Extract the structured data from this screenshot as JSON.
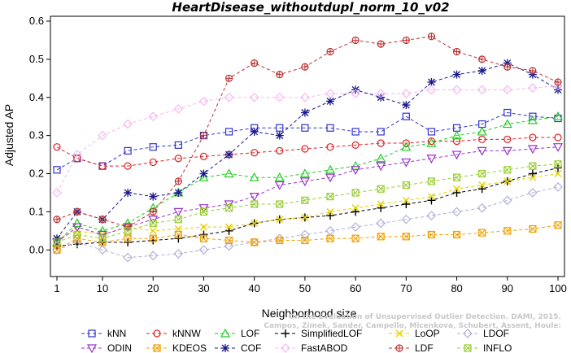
{
  "chart_data": {
    "type": "line",
    "title": "HeartDisease_withoutdupl_norm_10_v02",
    "xlabel": "Neighborhood size",
    "ylabel": "Adjusted AP",
    "xlim": [
      1,
      100
    ],
    "ylim": [
      -0.04,
      0.6
    ],
    "xticks": [
      "1",
      "10",
      "20",
      "30",
      "40",
      "50",
      "60",
      "70",
      "80",
      "90",
      "100"
    ],
    "yticks": [
      "0.0",
      "0.1",
      "0.2",
      "0.3",
      "0.4",
      "0.5",
      "0.6"
    ],
    "x": [
      1,
      5,
      10,
      15,
      20,
      25,
      30,
      35,
      40,
      45,
      50,
      55,
      60,
      65,
      70,
      75,
      80,
      85,
      90,
      95,
      100
    ],
    "series": [
      {
        "name": "kNN",
        "color": "#3333cc",
        "marker": "square",
        "dash": "4,3",
        "values": [
          0.21,
          0.24,
          0.22,
          0.26,
          0.27,
          0.275,
          0.3,
          0.31,
          0.32,
          0.32,
          0.32,
          0.32,
          0.31,
          0.31,
          0.35,
          0.31,
          0.32,
          0.33,
          0.36,
          0.35,
          0.345
        ]
      },
      {
        "name": "kNNW",
        "color": "#dd2222",
        "marker": "circle",
        "dash": "4,3",
        "values": [
          0.27,
          0.24,
          0.22,
          0.22,
          0.23,
          0.24,
          0.245,
          0.25,
          0.255,
          0.26,
          0.265,
          0.27,
          0.275,
          0.28,
          0.28,
          0.285,
          0.285,
          0.29,
          0.29,
          0.295,
          0.295
        ]
      },
      {
        "name": "LOF",
        "color": "#22cc22",
        "marker": "triangle-up",
        "dash": "4,3",
        "values": [
          0.02,
          0.07,
          0.05,
          0.07,
          0.11,
          0.15,
          0.19,
          0.2,
          0.19,
          0.19,
          0.2,
          0.21,
          0.22,
          0.24,
          0.27,
          0.28,
          0.3,
          0.31,
          0.33,
          0.34,
          0.35
        ]
      },
      {
        "name": "SimplifiedLOF",
        "color": "#000000",
        "marker": "plus",
        "dash": "4,3",
        "values": [
          0.01,
          0.015,
          0.02,
          0.02,
          0.025,
          0.03,
          0.04,
          0.05,
          0.07,
          0.08,
          0.085,
          0.09,
          0.1,
          0.11,
          0.12,
          0.13,
          0.15,
          0.16,
          0.18,
          0.2,
          0.215
        ]
      },
      {
        "name": "LoOP",
        "color": "#e6d000",
        "marker": "x",
        "dash": "4,3",
        "values": [
          0.03,
          0.05,
          0.04,
          0.06,
          0.05,
          0.055,
          0.06,
          0.06,
          0.07,
          0.08,
          0.085,
          0.1,
          0.11,
          0.12,
          0.13,
          0.14,
          0.16,
          0.17,
          0.18,
          0.19,
          0.2
        ]
      },
      {
        "name": "LDOF",
        "color": "#b0b0d8",
        "marker": "diamond",
        "dash": "4,3",
        "values": [
          0.0,
          0.02,
          0.0,
          -0.02,
          -0.015,
          -0.01,
          0.0,
          0.01,
          0.02,
          0.03,
          0.04,
          0.05,
          0.06,
          0.07,
          0.08,
          0.09,
          0.1,
          0.11,
          0.13,
          0.15,
          0.165
        ]
      },
      {
        "name": "ODIN",
        "color": "#9933cc",
        "marker": "triangle-down",
        "dash": "4,3",
        "values": [
          0.02,
          0.06,
          0.04,
          0.06,
          0.08,
          0.1,
          0.11,
          0.12,
          0.14,
          0.17,
          0.18,
          0.19,
          0.21,
          0.22,
          0.23,
          0.24,
          0.25,
          0.26,
          0.26,
          0.265,
          0.27
        ]
      },
      {
        "name": "KDEOS",
        "color": "#f0a000",
        "marker": "square-x",
        "dash": "4,3",
        "values": [
          0.0,
          0.03,
          0.02,
          0.03,
          0.03,
          0.04,
          0.03,
          0.025,
          0.02,
          0.025,
          0.025,
          0.03,
          0.03,
          0.035,
          0.035,
          0.04,
          0.04,
          0.045,
          0.05,
          0.055,
          0.065
        ]
      },
      {
        "name": "COF",
        "color": "#1a1a8c",
        "marker": "asterisk",
        "dash": "4,3",
        "values": [
          0.03,
          0.1,
          0.08,
          0.15,
          0.14,
          0.15,
          0.2,
          0.25,
          0.31,
          0.3,
          0.36,
          0.39,
          0.42,
          0.4,
          0.38,
          0.44,
          0.46,
          0.47,
          0.49,
          0.46,
          0.42
        ]
      },
      {
        "name": "FastABOD",
        "color": "#f5b8f0",
        "marker": "diamond",
        "dash": "4,3",
        "values": [
          0.15,
          0.25,
          0.3,
          0.33,
          0.35,
          0.37,
          0.39,
          0.4,
          0.4,
          0.4,
          0.4,
          0.41,
          0.41,
          0.41,
          0.41,
          0.42,
          0.42,
          0.42,
          0.42,
          0.425,
          0.43
        ]
      },
      {
        "name": "LDF",
        "color": "#bb3333",
        "marker": "circle-plus",
        "dash": "4,3",
        "values": [
          0.08,
          0.1,
          0.08,
          0.06,
          0.1,
          0.18,
          0.3,
          0.45,
          0.49,
          0.46,
          0.48,
          0.52,
          0.55,
          0.54,
          0.55,
          0.56,
          0.52,
          0.5,
          0.48,
          0.47,
          0.44
        ]
      },
      {
        "name": "INFLO",
        "color": "#99cc33",
        "marker": "square-x",
        "dash": "4,3",
        "values": [
          0.02,
          0.04,
          0.03,
          0.05,
          0.07,
          0.08,
          0.1,
          0.11,
          0.12,
          0.12,
          0.13,
          0.14,
          0.15,
          0.16,
          0.17,
          0.18,
          0.19,
          0.2,
          0.21,
          0.22,
          0.225
        ]
      }
    ],
    "legend_position": "bottom",
    "grid": false
  },
  "watermark": {
    "line1": "Campos, Zimek, Sander, Campello, Micenkova, Schubert, Assent, Houle:",
    "line2": "On the Evaluation of Unsupervised Outlier Detection. DAMI, 2015."
  }
}
